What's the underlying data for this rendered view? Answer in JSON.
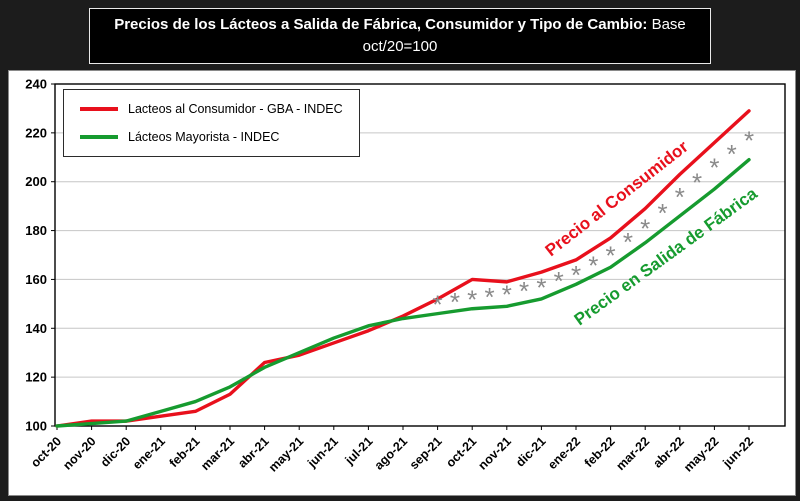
{
  "page": {
    "background": "#1c1c1c"
  },
  "title": {
    "line1_bold": "Precios de los Lácteos a Salida de Fábrica, Consumidor y Tipo de Cambio:",
    "line1_normal": "Base",
    "line2": "oct/20=100"
  },
  "chart_data": {
    "type": "line",
    "title": "Precios de los Lácteos a Salida de Fábrica, Consumidor y Tipo de Cambio: Base oct/20=100",
    "categories": [
      "oct-20",
      "nov-20",
      "dic-20",
      "ene-21",
      "feb-21",
      "mar-21",
      "abr-21",
      "may-21",
      "jun-21",
      "jul-21",
      "ago-21",
      "sep-21",
      "oct-21",
      "nov-21",
      "dic-21",
      "ene-22",
      "feb-22",
      "mar-22",
      "abr-22",
      "may-22",
      "jun-22"
    ],
    "ylim": [
      100,
      240
    ],
    "y_ticks": [
      100,
      120,
      140,
      160,
      180,
      200,
      220,
      240
    ],
    "grid": true,
    "legend_position": "top-left",
    "series": [
      {
        "name": "Lacteos al Consumidor - GBA - INDEC",
        "type": "line",
        "color": "#e8101c",
        "values": [
          100,
          102,
          102,
          104,
          106,
          113,
          126,
          129,
          134,
          139,
          145,
          152,
          160,
          159,
          163,
          168,
          177,
          189,
          203,
          216,
          229
        ]
      },
      {
        "name": "Lácteos Mayorista - INDEC",
        "type": "line",
        "color": "#169b2f",
        "values": [
          100,
          101,
          102,
          106,
          110,
          116,
          124,
          130,
          136,
          141,
          144,
          146,
          148,
          149,
          152,
          158,
          165,
          175,
          186,
          197,
          209
        ]
      },
      {
        "name": "Tipo de Cambio",
        "type": "markers",
        "marker": "*",
        "color": "#8a8a8a",
        "in_legend": false,
        "values": [
          null,
          null,
          null,
          null,
          null,
          null,
          null,
          null,
          null,
          null,
          null,
          151,
          153,
          155,
          158,
          163,
          171,
          182,
          195,
          207,
          218
        ]
      }
    ],
    "annotations": [
      {
        "text": "Precio al Consumidor",
        "color": "#e8101c",
        "rotation": -38
      },
      {
        "text": "Precio en Salida de Fábrica",
        "color": "#169b2f",
        "rotation": -36
      }
    ]
  }
}
